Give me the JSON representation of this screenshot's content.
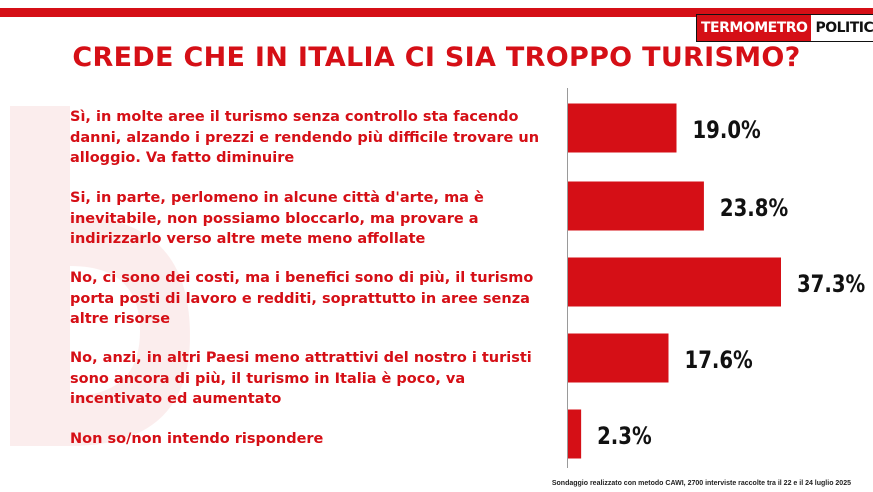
{
  "header": {
    "brand_part1": "TERMOMETRO",
    "brand_part2": "POLITICO",
    "title": "CREDE CHE IN ITALIA CI SIA TROPPO TURISMO?"
  },
  "colors": {
    "accent": "#d50f16",
    "value_text": "#111111",
    "axis": "#9a9a9a"
  },
  "chart_data": {
    "type": "bar",
    "orientation": "horizontal",
    "title": "CREDE CHE IN ITALIA CI SIA TROPPO TURISMO?",
    "categories": [
      "Sì, in molte aree il turismo senza controllo sta facendo danni, alzando i prezzi e rendendo più difficile trovare un alloggio. Va fatto diminuire",
      "Si, in parte, perlomeno in alcune città d'arte, ma è inevitabile, non possiamo bloccarlo, ma provare a indirizzarlo verso altre mete meno affollate",
      "No, ci sono dei costi, ma i benefici sono di più, il turismo porta posti di lavoro e redditi, soprattutto in aree senza altre risorse",
      "No, anzi, in altri Paesi meno attrattivi del nostro i turisti sono ancora di più, il turismo in Italia è poco, va incentivato ed aumentato",
      "Non so/non intendo rispondere"
    ],
    "values": [
      19.0,
      23.8,
      37.3,
      17.6,
      2.3
    ],
    "value_labels": [
      "19.0%",
      "23.8%",
      "37.3%",
      "17.6%",
      "2.3%"
    ],
    "xlabel": "",
    "ylabel": "",
    "xlim": [
      0,
      37.3
    ],
    "grid": false,
    "legend": "none"
  },
  "footer": {
    "note": "Sondaggio realizzato con metodo CAWI, 2700 interviste raccolte tra il 22 e il 24 luglio 2025"
  }
}
